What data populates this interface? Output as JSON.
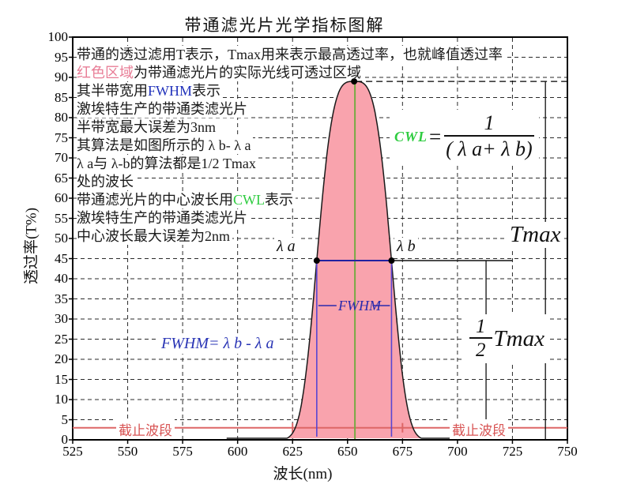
{
  "title": "带通滤光片光学指标图解",
  "colors": {
    "curve_fill": "#f9a3ad",
    "curve_outline": "#1a1a1a",
    "grid": "#2a2a2a",
    "cwl_line": "#77aa44",
    "halfmax_line": "#2222a0",
    "fwhm_vertical": "#5946d2",
    "fwhm_text": "#2a2aad",
    "cutoff_red": "#dd6666",
    "note_pink": "#e87d96",
    "note_blue": "#2233bb",
    "note_green": "#2ecc40",
    "dim_line": "#111111"
  },
  "axis": {
    "x_title": "波长(nm)",
    "y_title": "透过率(T%)",
    "x_ticks": [
      525,
      550,
      575,
      600,
      625,
      650,
      675,
      700,
      725,
      750
    ],
    "y_ticks": [
      0,
      5,
      10,
      15,
      20,
      25,
      30,
      35,
      40,
      45,
      50,
      55,
      60,
      65,
      70,
      75,
      80,
      85,
      90,
      95,
      100
    ]
  },
  "notes": [
    {
      "segments": [
        {
          "t": "带通的透过滤用T表示，Tmax用来表示最高透过率，也就峰值透过率",
          "c": "#1a1a1a"
        }
      ]
    },
    {
      "segments": [
        {
          "t": "红色区域",
          "c": "#e87d96"
        },
        {
          "t": "为带通滤光片的实际光线可透过区域",
          "c": "#1a1a1a"
        }
      ]
    },
    {
      "segments": [
        {
          "t": "其半带宽用",
          "c": "#1a1a1a"
        },
        {
          "t": "FWHM",
          "c": "#2233bb"
        },
        {
          "t": "表示",
          "c": "#1a1a1a"
        }
      ]
    },
    {
      "segments": [
        {
          "t": "激埃特生产的带通类滤光片",
          "c": "#1a1a1a"
        }
      ]
    },
    {
      "segments": [
        {
          "t": "半带宽最大误差为3nm",
          "c": "#1a1a1a"
        }
      ]
    },
    {
      "segments": [
        {
          "t": "其算法是如图所示的 λ b- λ a",
          "c": "#1a1a1a"
        }
      ]
    },
    {
      "segments": [
        {
          "t": " λ a与 λ-b的算法都是1/2 Tmax",
          "c": "#1a1a1a"
        }
      ]
    },
    {
      "segments": [
        {
          "t": " 处的波长",
          "c": "#1a1a1a"
        }
      ]
    },
    {
      "segments": [
        {
          "t": "带通滤光片的中心波长用",
          "c": "#1a1a1a"
        },
        {
          "t": "CWL",
          "c": "#2ecc40"
        },
        {
          "t": "表示",
          "c": "#1a1a1a"
        }
      ]
    },
    {
      "segments": [
        {
          "t": "激埃特生产的带通类滤光片",
          "c": "#1a1a1a"
        }
      ]
    },
    {
      "segments": [
        {
          "t": "中心波长最大误差为2nm",
          "c": "#1a1a1a"
        }
      ]
    }
  ],
  "annotations": {
    "lambda_a_label": "λ a",
    "lambda_b_label": "λ b",
    "fwhm_dim_label": "FWHM",
    "fwhm_formula": "FWHM= λ b - λ a",
    "cwl_label": "CWL",
    "cwl_eq": "=",
    "cwl_numerator": "1",
    "cwl_denominator": "( λ a+ λ b)",
    "tmax_label": "Tmax",
    "half_numerator": "1",
    "half_denominator": "2",
    "half_tmax_label": "Tmax",
    "cutoff_left": "截止波段",
    "cutoff_right": "截止波段"
  },
  "chart_data": {
    "type": "area",
    "title": "带通滤光片光学指标图解",
    "xlabel": "波长(nm)",
    "ylabel": "透过率(T%)",
    "xlim": [
      525,
      750
    ],
    "ylim": [
      0,
      100
    ],
    "x_tick_step": 25,
    "y_tick_step": 5,
    "grid": true,
    "curve": {
      "shape": "super_gaussian",
      "cwl_nm": 653,
      "tmax_percent": 89,
      "fwhm_nm": 34,
      "exponent": 3.5,
      "lambda_a_nm": 636,
      "lambda_b_nm": 670,
      "half_tmax_percent": 44.5,
      "sample_range_nm": [
        595,
        710
      ]
    },
    "sample_points": [
      [
        600,
        0
      ],
      [
        617,
        0.5
      ],
      [
        625,
        3
      ],
      [
        630,
        15
      ],
      [
        636,
        44.5
      ],
      [
        645,
        80
      ],
      [
        653,
        89
      ],
      [
        661,
        80
      ],
      [
        670,
        44.5
      ],
      [
        676,
        15
      ],
      [
        681,
        3
      ],
      [
        688,
        0.5
      ],
      [
        706,
        0
      ]
    ],
    "cutoff": {
      "level_percent": 3,
      "tick_wavelengths_nm": [
        625,
        675
      ]
    },
    "dimension_lines": {
      "halfmax_extension_end_nm": 725,
      "half_tmax_dim_nm": 713,
      "tmax_dim_nm": 740
    }
  }
}
